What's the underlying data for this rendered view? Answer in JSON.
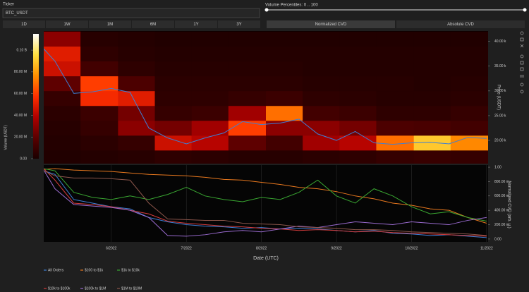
{
  "controls": {
    "ticker_label": "Ticker",
    "ticker_value": "BTC_USDT",
    "percentiles_label": "Volume Percentiles: 0 .. 100",
    "ranges": [
      "1D",
      "1W",
      "1M",
      "6M",
      "1Y",
      "3Y"
    ],
    "modes": [
      "Normalized CVD",
      "Absolute CVD"
    ]
  },
  "chart_data": [
    {
      "type": "heatmap",
      "ylabel": "Price (USDT)",
      "colorbar_label": "Volume (USDT)",
      "xlim": [
        5.1,
        11.02
      ],
      "ylim": [
        15300,
        42100
      ],
      "yticks": [
        {
          "value": 20000,
          "label": "20.00 k"
        },
        {
          "value": 25000,
          "label": "25.00 k"
        },
        {
          "value": 30000,
          "label": "30.00 k"
        },
        {
          "value": 35000,
          "label": "35.00 k"
        },
        {
          "value": 40000,
          "label": "40.00 k"
        }
      ],
      "x_bins": [
        5.1,
        5.59,
        6.09,
        6.58,
        7.07,
        7.56,
        8.06,
        8.55,
        9.04,
        9.53,
        10.03,
        10.52,
        11.02
      ],
      "y_bins": [
        15000,
        18000,
        21000,
        24000,
        27000,
        30000,
        33000,
        36000,
        39000,
        42000
      ],
      "z": [
        [
          2000000,
          3000000,
          4000000,
          6000000,
          5000000,
          4000000,
          4000000,
          5000000,
          6000000,
          8000000,
          9000000,
          8000000
        ],
        [
          3000000,
          5000000,
          8000000,
          45000000,
          40000000,
          20000000,
          12000000,
          35000000,
          40000000,
          70000000,
          90000000,
          75000000
        ],
        [
          4000000,
          8000000,
          30000000,
          25000000,
          35000000,
          60000000,
          30000000,
          30000000,
          25000000,
          15000000,
          14000000,
          12000000
        ],
        [
          5000000,
          10000000,
          25000000,
          8000000,
          10000000,
          35000000,
          70000000,
          12000000,
          10000000,
          6000000,
          6000000,
          8000000
        ],
        [
          8000000,
          55000000,
          50000000,
          6000000,
          6000000,
          8000000,
          10000000,
          6000000,
          5000000,
          4000000,
          4000000,
          5000000
        ],
        [
          20000000,
          60000000,
          15000000,
          5000000,
          5000000,
          5000000,
          5000000,
          4000000,
          4000000,
          4000000,
          3000000,
          4000000
        ],
        [
          45000000,
          12000000,
          6000000,
          4000000,
          4000000,
          4000000,
          4000000,
          3000000,
          3000000,
          3000000,
          3000000,
          3000000
        ],
        [
          50000000,
          6000000,
          4000000,
          3000000,
          3000000,
          3000000,
          3000000,
          3000000,
          3000000,
          3000000,
          3000000,
          3000000
        ],
        [
          30000000,
          4000000,
          3000000,
          2000000,
          2000000,
          2000000,
          2000000,
          2000000,
          2000000,
          2000000,
          2000000,
          2000000
        ]
      ],
      "zlim": [
        0,
        115000000
      ],
      "colorscale": [
        "#1a0000",
        "#5a0000",
        "#b00000",
        "#ff3000",
        "#ff9000",
        "#ffe040",
        "#ffffff"
      ],
      "colorbar_ticks": [
        {
          "value": 0,
          "label": "0.00"
        },
        {
          "value": 20000000,
          "label": "20.00 M"
        },
        {
          "value": 40000000,
          "label": "40.00 M"
        },
        {
          "value": 60000000,
          "label": "60.00 M"
        },
        {
          "value": 80000000,
          "label": "80.00 M"
        },
        {
          "value": 100000000,
          "label": "0.10 B"
        }
      ],
      "series": [
        {
          "color": "#3d7fd6",
          "x": [
            5.1,
            5.25,
            5.5,
            5.75,
            6,
            6.25,
            6.5,
            6.75,
            7,
            7.25,
            7.5,
            7.75,
            8,
            8.25,
            8.5,
            8.75,
            9,
            9.25,
            9.5,
            9.75,
            10,
            10.25,
            10.5,
            10.75,
            11
          ],
          "values": [
            38500,
            36000,
            29500,
            29800,
            30500,
            29700,
            22500,
            20500,
            19300,
            20500,
            21500,
            23800,
            23200,
            23500,
            24300,
            21300,
            20000,
            21800,
            19500,
            19200,
            19500,
            19600,
            19300,
            20600,
            20400
          ]
        }
      ]
    },
    {
      "type": "line",
      "xlabel": "Date (UTC)",
      "ylabel": "Normalized CVD (arb. u.)",
      "xlim": [
        5.1,
        11.02
      ],
      "ylim": [
        -0.04,
        1.03
      ],
      "xticks": [
        {
          "value": 6,
          "label": "6/2022"
        },
        {
          "value": 7,
          "label": "7/2022"
        },
        {
          "value": 8,
          "label": "8/2022"
        },
        {
          "value": 9,
          "label": "9/2022"
        },
        {
          "value": 10,
          "label": "10/2022"
        },
        {
          "value": 11,
          "label": "11/2022"
        }
      ],
      "yticks": [
        {
          "value": 0,
          "label": "0.00"
        },
        {
          "value": 0.2,
          "label": "200.00 m"
        },
        {
          "value": 0.4,
          "label": "400.00 m"
        },
        {
          "value": 0.6,
          "label": "600.00 m"
        },
        {
          "value": 0.8,
          "label": "800.00 m"
        },
        {
          "value": 1,
          "label": "1.00"
        }
      ],
      "x": [
        5.1,
        5.25,
        5.5,
        5.75,
        6,
        6.25,
        6.5,
        6.75,
        7,
        7.25,
        7.5,
        7.75,
        8,
        8.25,
        8.5,
        8.75,
        9,
        9.25,
        9.5,
        9.75,
        10,
        10.25,
        10.5,
        10.75,
        11
      ],
      "series": [
        {
          "name": "All Orders",
          "color": "#3d7fd6",
          "values": [
            0.95,
            0.9,
            0.55,
            0.5,
            0.45,
            0.42,
            0.3,
            0.24,
            0.2,
            0.18,
            0.17,
            0.15,
            0.16,
            0.14,
            0.15,
            0.14,
            0.12,
            0.1,
            0.12,
            0.08,
            0.07,
            0.05,
            0.06,
            0.04,
            0.02
          ]
        },
        {
          "name": "$100 to $1k",
          "color": "#e8781e",
          "values": [
            0.97,
            0.98,
            0.96,
            0.95,
            0.94,
            0.92,
            0.9,
            0.89,
            0.88,
            0.86,
            0.83,
            0.82,
            0.79,
            0.76,
            0.72,
            0.7,
            0.66,
            0.6,
            0.56,
            0.5,
            0.47,
            0.42,
            0.4,
            0.3,
            0.22
          ]
        },
        {
          "name": "$1k to $10k",
          "color": "#3aa832",
          "values": [
            0.98,
            0.95,
            0.65,
            0.58,
            0.55,
            0.6,
            0.55,
            0.62,
            0.72,
            0.6,
            0.55,
            0.52,
            0.58,
            0.55,
            0.65,
            0.82,
            0.6,
            0.5,
            0.7,
            0.6,
            0.45,
            0.35,
            0.38,
            0.3,
            0.25
          ]
        },
        {
          "name": "$10k to $100k",
          "color": "#d43b3b",
          "values": [
            0.98,
            0.82,
            0.5,
            0.48,
            0.45,
            0.4,
            0.35,
            0.25,
            0.22,
            0.2,
            0.18,
            0.17,
            0.15,
            0.14,
            0.12,
            0.13,
            0.12,
            0.1,
            0.11,
            0.09,
            0.08,
            0.07,
            0.06,
            0.05,
            0.04
          ]
        },
        {
          "name": "$100k to $1M",
          "color": "#9a6bd0",
          "values": [
            0.96,
            0.7,
            0.48,
            0.46,
            0.44,
            0.4,
            0.3,
            0.05,
            0.04,
            0.06,
            0.1,
            0.12,
            0.1,
            0.14,
            0.18,
            0.16,
            0.2,
            0.24,
            0.22,
            0.2,
            0.24,
            0.22,
            0.2,
            0.26,
            0.3
          ]
        },
        {
          "name": "$1M to $10M",
          "color": "#8c564b",
          "values": [
            0.95,
            0.88,
            0.85,
            0.85,
            0.84,
            0.82,
            0.5,
            0.28,
            0.27,
            0.26,
            0.26,
            0.22,
            0.21,
            0.2,
            0.17,
            0.16,
            0.15,
            0.13,
            0.13,
            0.12,
            0.1,
            0.09,
            0.08,
            0.07,
            0.05
          ]
        }
      ]
    }
  ]
}
